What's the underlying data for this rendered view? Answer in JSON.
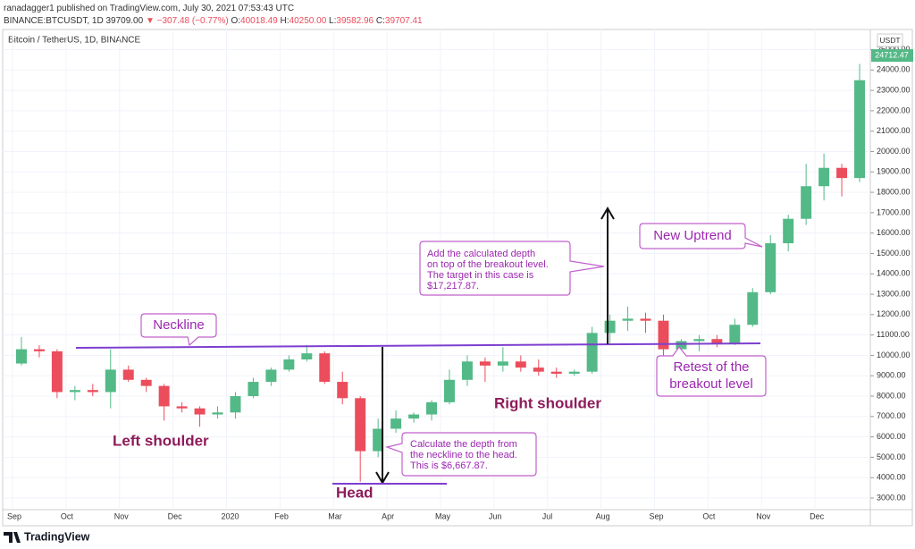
{
  "header": {
    "user": "ranadagger1",
    "published": "published on TradingView.com, July 30, 2021 07:53:43 UTC",
    "symbol": "BINANCE:BTCUSDT, 1D",
    "price": "39709.00",
    "change": "▼ −307.48 (−0.77%)",
    "ohlc": [
      [
        "O:",
        "40018.49"
      ],
      [
        "H:",
        "40250.00"
      ],
      [
        "L:",
        "39582.96"
      ],
      [
        "C:",
        "39707.41"
      ]
    ]
  },
  "footer": "TradingView",
  "chart_data": {
    "type": "candlestick",
    "title": "Bitcoin / TetherUS, 1D, BINANCE",
    "currency": "USDT",
    "last_price": 24712.47,
    "up_color": "#53b987",
    "down_color": "#eb4d5c",
    "grid": true,
    "categories": [
      "Sep",
      null,
      null,
      "Oct",
      null,
      null,
      "Nov",
      null,
      null,
      "Dec",
      null,
      null,
      "2020",
      null,
      null,
      "Feb",
      null,
      null,
      "Mar",
      null,
      null,
      "Apr",
      null,
      null,
      "May",
      null,
      null,
      "Jun",
      null,
      null,
      "Jul",
      null,
      null,
      "Aug",
      null,
      null,
      "Sep",
      null,
      null,
      "Oct",
      null,
      null,
      "Nov",
      null,
      null,
      "Dec",
      null,
      null
    ],
    "open": [
      9600,
      10300,
      10200,
      8200,
      8300,
      8200,
      9300,
      8800,
      8500,
      7500,
      7400,
      7100,
      7200,
      8000,
      8700,
      9300,
      9800,
      10100,
      8700,
      7900,
      5300,
      6400,
      6900,
      7100,
      7700,
      8800,
      9700,
      9500,
      9700,
      9400,
      9200,
      9100,
      9200,
      11100,
      11700,
      11800,
      11700,
      10300,
      10700,
      10800,
      10600,
      11500,
      13100,
      15500,
      16700,
      18300,
      19200,
      18700
    ],
    "high": [
      10900,
      10500,
      10300,
      8500,
      8600,
      10300,
      9500,
      8900,
      8600,
      7700,
      7500,
      7500,
      8200,
      8900,
      9400,
      10000,
      10500,
      10200,
      9200,
      8000,
      6900,
      7300,
      7200,
      7800,
      9300,
      10000,
      9900,
      10400,
      10000,
      9800,
      9400,
      9300,
      11400,
      12000,
      12400,
      12100,
      12000,
      10800,
      11000,
      11000,
      11800,
      13300,
      15900,
      16900,
      19400,
      19900,
      19400,
      24300
    ],
    "low": [
      9500,
      9900,
      7900,
      7800,
      8000,
      7400,
      8700,
      8200,
      6800,
      7200,
      6500,
      6900,
      6900,
      7900,
      8500,
      9200,
      9700,
      8600,
      7600,
      3800,
      5000,
      6200,
      6700,
      6800,
      7600,
      8500,
      8700,
      9200,
      9200,
      9000,
      8900,
      9000,
      9100,
      10600,
      11200,
      11100,
      9900,
      10000,
      10200,
      10400,
      10500,
      11400,
      13000,
      15100,
      16400,
      17600,
      17800,
      18500
    ],
    "close": [
      10300,
      10200,
      8200,
      8300,
      8200,
      9300,
      8800,
      8500,
      7500,
      7400,
      7100,
      7200,
      8000,
      8700,
      9300,
      9800,
      10100,
      8700,
      7900,
      5300,
      6400,
      6900,
      7100,
      7700,
      8800,
      9700,
      9500,
      9700,
      9400,
      9200,
      9100,
      9200,
      11100,
      11700,
      11800,
      11700,
      10300,
      10700,
      10800,
      10600,
      11500,
      13100,
      15500,
      16700,
      18300,
      19200,
      18700,
      23500
    ],
    "ylim": [
      2430,
      25900
    ],
    "yticks": [
      {
        "value": 3000,
        "label": "3000.00"
      },
      {
        "value": 4000,
        "label": "4000.00"
      },
      {
        "value": 5000,
        "label": "5000.00"
      },
      {
        "value": 6000,
        "label": "6000.00"
      },
      {
        "value": 7000,
        "label": "7000.00"
      },
      {
        "value": 8000,
        "label": "8000.00"
      },
      {
        "value": 9000,
        "label": "9000.00"
      },
      {
        "value": 10000,
        "label": "10000.00"
      },
      {
        "value": 11000,
        "label": "11000.00"
      },
      {
        "value": 12000,
        "label": "12000.00"
      },
      {
        "value": 13000,
        "label": "13000.00"
      },
      {
        "value": 14000,
        "label": "14000.00"
      },
      {
        "value": 15000,
        "label": "15000.00"
      },
      {
        "value": 16000,
        "label": "16000.00"
      },
      {
        "value": 17000,
        "label": "17000.00"
      },
      {
        "value": 18000,
        "label": "18000.00"
      },
      {
        "value": 19000,
        "label": "19000.00"
      },
      {
        "value": 20000,
        "label": "20000.00"
      },
      {
        "value": 21000,
        "label": "21000.00"
      },
      {
        "value": 22000,
        "label": "22000.00"
      },
      {
        "value": 23000,
        "label": "23000.00"
      },
      {
        "value": 24000,
        "label": "24000.00"
      },
      {
        "value": 25000,
        "label": "25000.00"
      }
    ],
    "annotations": {
      "neckline": "Neckline",
      "left_shoulder": "Left shoulder",
      "head": "Head",
      "right_shoulder": "Right shoulder",
      "new_uptrend": "New Uptrend",
      "retest": [
        "Retest of the",
        "breakout level"
      ],
      "target_note": [
        "Add the calculated depth",
        "on top of the breakout level.",
        "The target in this case is",
        "$17,217.87."
      ],
      "depth_note": [
        "Calculate the depth from",
        "the neckline to the head.",
        "This is $6,667.87."
      ]
    }
  }
}
